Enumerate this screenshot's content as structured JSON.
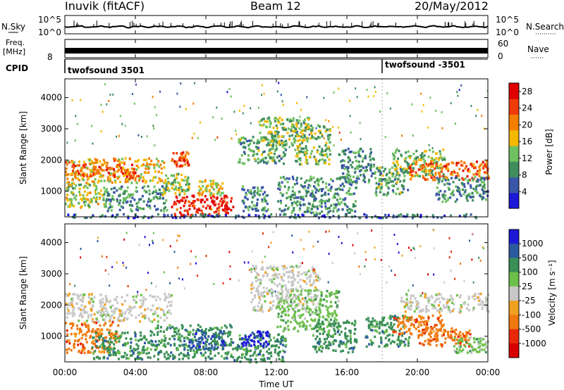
{
  "header": {
    "station": "Inuvik (fitACF)",
    "beam": "Beam 12",
    "date": "20/May/2012"
  },
  "panels": {
    "nsky": {
      "left_label": "N.Sky",
      "right_label": "N.Search",
      "ticks": [
        "10^5",
        "10^0"
      ],
      "right_ticks": [
        "10^5",
        "10^0"
      ]
    },
    "freq": {
      "left_label_1": "Freq.",
      "left_label_2": "[MHz]",
      "ticks": [
        "8"
      ],
      "right_label": "Nave",
      "right_ticks": [
        "60",
        "0"
      ]
    },
    "cpid": {
      "left_label": "CPID",
      "programs": [
        "twofsound 3501",
        "twofsound -3501"
      ]
    }
  },
  "colors": {
    "power_scale": [
      "#1d18d8",
      "#3a56a8",
      "#3f8c5c",
      "#6ec060",
      "#f5b800",
      "#f47e00",
      "#f03a08",
      "#e00000"
    ],
    "velocity_scale": [
      "#1d18d8",
      "#2c5aa0",
      "#3a8f56",
      "#6cc04a",
      "#c8c8c8",
      "#f0a020",
      "#f07810",
      "#e82808",
      "#d80000"
    ]
  },
  "chart_data": [
    {
      "type": "heatmap",
      "name": "power",
      "ylabel": "Slant Range [km]",
      "y_ticks": [
        "1000",
        "2000",
        "3000",
        "4000"
      ],
      "y_tick_values": [
        1000,
        2000,
        3000,
        4000
      ],
      "ylim": [
        180,
        4600
      ],
      "colorbar": {
        "label": "Power [dB]",
        "ticks": [
          "4",
          "8",
          "12",
          "16",
          "20",
          "24",
          "28"
        ],
        "tick_values": [
          4,
          8,
          12,
          16,
          20,
          24,
          28
        ],
        "range": [
          0,
          30
        ]
      },
      "regions": [
        {
          "t": [
            0.0,
            5.7
          ],
          "r": [
            1300,
            2100
          ],
          "v": 18
        },
        {
          "t": [
            0.3,
            4.0
          ],
          "r": [
            1500,
            1900
          ],
          "v": 23
        },
        {
          "t": [
            0.0,
            2.2
          ],
          "r": [
            500,
            1300
          ],
          "v": 15
        },
        {
          "t": [
            2.2,
            5.8
          ],
          "r": [
            400,
            1200
          ],
          "v": 10
        },
        {
          "t": [
            5.5,
            7.0
          ],
          "r": [
            900,
            1600
          ],
          "v": 14
        },
        {
          "t": [
            6.0,
            7.0
          ],
          "r": [
            1800,
            2300
          ],
          "v": 24
        },
        {
          "t": [
            6.0,
            9.5
          ],
          "r": [
            250,
            900
          ],
          "v": 27
        },
        {
          "t": [
            7.5,
            9.0
          ],
          "r": [
            900,
            1400
          ],
          "v": 16
        },
        {
          "t": [
            9.8,
            12.5
          ],
          "r": [
            1900,
            2800
          ],
          "v": 11
        },
        {
          "t": [
            11.0,
            14.0
          ],
          "r": [
            2500,
            3400
          ],
          "v": 13
        },
        {
          "t": [
            10.0,
            11.5
          ],
          "r": [
            400,
            1200
          ],
          "v": 9
        },
        {
          "t": [
            12.0,
            16.5
          ],
          "r": [
            300,
            1500
          ],
          "v": 10
        },
        {
          "t": [
            13.0,
            15.0
          ],
          "r": [
            1900,
            3200
          ],
          "v": 13
        },
        {
          "t": [
            15.5,
            17.5
          ],
          "r": [
            1300,
            2400
          ],
          "v": 9
        },
        {
          "t": [
            17.5,
            19.5
          ],
          "r": [
            900,
            1800
          ],
          "v": 11
        },
        {
          "t": [
            18.5,
            21.5
          ],
          "r": [
            1500,
            2400
          ],
          "v": 13
        },
        {
          "t": [
            19.5,
            24.0
          ],
          "r": [
            1400,
            2000
          ],
          "v": 22
        },
        {
          "t": [
            21.0,
            24.0
          ],
          "r": [
            700,
            1500
          ],
          "v": 9
        },
        {
          "t": [
            0.0,
            24.0
          ],
          "r": [
            180,
            300
          ],
          "v": 6
        }
      ]
    },
    {
      "type": "heatmap",
      "name": "velocity",
      "ylabel": "Slant Range [km]",
      "y_ticks": [
        "1000",
        "2000",
        "3000",
        "4000"
      ],
      "y_tick_values": [
        1000,
        2000,
        3000,
        4000
      ],
      "ylim": [
        180,
        4600
      ],
      "colorbar": {
        "label": "Velocity [m s⁻¹]",
        "ticks": [
          "1000",
          "500",
          "100",
          "25",
          "-25",
          "-100",
          "-500",
          "-1000"
        ]
      },
      "regions": [
        {
          "t": [
            0.0,
            6.0
          ],
          "r": [
            1500,
            2400
          ],
          "c": 4
        },
        {
          "t": [
            0.0,
            3.0
          ],
          "r": [
            500,
            1500
          ],
          "c": 6
        },
        {
          "t": [
            1.5,
            5.0
          ],
          "r": [
            300,
            1200
          ],
          "c": 2
        },
        {
          "t": [
            5.0,
            9.5
          ],
          "r": [
            300,
            1400
          ],
          "c": 2
        },
        {
          "t": [
            7.0,
            9.0
          ],
          "r": [
            600,
            1200
          ],
          "c": 1
        },
        {
          "t": [
            9.5,
            12.5
          ],
          "r": [
            200,
            1100
          ],
          "c": 2
        },
        {
          "t": [
            10.0,
            11.5
          ],
          "r": [
            700,
            1200
          ],
          "c": 0
        },
        {
          "t": [
            10.5,
            14.5
          ],
          "r": [
            1800,
            3300
          ],
          "c": 4
        },
        {
          "t": [
            12.0,
            15.5
          ],
          "r": [
            1200,
            2500
          ],
          "c": 3
        },
        {
          "t": [
            14.0,
            16.5
          ],
          "r": [
            500,
            1600
          ],
          "c": 2
        },
        {
          "t": [
            17.0,
            19.5
          ],
          "r": [
            700,
            1700
          ],
          "c": 2
        },
        {
          "t": [
            18.5,
            21.5
          ],
          "r": [
            1100,
            1700
          ],
          "c": 6
        },
        {
          "t": [
            19.0,
            24.0
          ],
          "r": [
            1800,
            2400
          ],
          "c": 4
        },
        {
          "t": [
            20.0,
            23.0
          ],
          "r": [
            700,
            1300
          ],
          "c": 6
        },
        {
          "t": [
            22.0,
            24.0
          ],
          "r": [
            500,
            1000
          ],
          "c": 3
        }
      ]
    }
  ],
  "time_axis": {
    "label": "Time UT",
    "ticks": [
      "00:00",
      "04:00",
      "08:00",
      "12:00",
      "16:00",
      "20:00",
      "00:00"
    ],
    "tick_hours": [
      0,
      4,
      8,
      12,
      16,
      20,
      24
    ],
    "range_hours": [
      0,
      24
    ]
  },
  "program_change_hour": 18.0
}
